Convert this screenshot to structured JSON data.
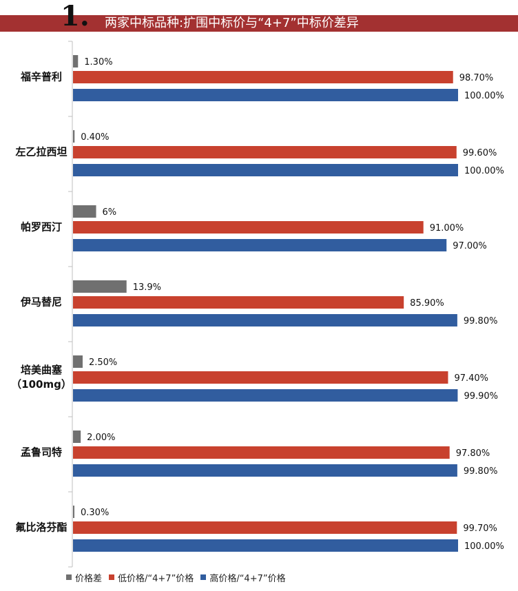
{
  "header": {
    "number": "1.",
    "title": "两家中标品种:扩围中标价与“4+7”中标价差异"
  },
  "colors": {
    "diff": "#707070",
    "low": "#c8412e",
    "high": "#315d9f",
    "banner": "#a33131"
  },
  "chart_data": {
    "type": "bar",
    "orientation": "horizontal",
    "categories": [
      [
        "福辛普利"
      ],
      [
        "左乙拉西坦"
      ],
      [
        "帕罗西汀"
      ],
      [
        "伊马替尼"
      ],
      [
        "培美曲塞",
        "（100mg）"
      ],
      [
        "孟鲁司特"
      ],
      [
        "氟比洛芬酯"
      ]
    ],
    "series": [
      {
        "name": "价格差",
        "color": "#707070",
        "values": [
          1.3,
          0.4,
          6,
          13.9,
          2.5,
          2.0,
          0.3
        ],
        "labels": [
          "1.30%",
          "0.40%",
          "6%",
          "13.9%",
          "2.50%",
          "2.00%",
          "0.30%"
        ]
      },
      {
        "name": "低价格/“4+7”价格",
        "color": "#c8412e",
        "values": [
          98.7,
          99.6,
          91.0,
          85.9,
          97.4,
          97.8,
          99.7
        ],
        "labels": [
          "98.70%",
          "99.60%",
          "91.00%",
          "85.90%",
          "97.40%",
          "97.80%",
          "99.70%"
        ]
      },
      {
        "name": "高价格/“4+7”价格",
        "color": "#315d9f",
        "values": [
          100.0,
          100.0,
          97.0,
          99.8,
          99.9,
          99.8,
          100.0
        ],
        "labels": [
          "100.00%",
          "100.00%",
          "97.00%",
          "99.80%",
          "99.90%",
          "99.80%",
          "100.00%"
        ]
      }
    ],
    "xlim": [
      0,
      100
    ],
    "legend": "bottom"
  }
}
